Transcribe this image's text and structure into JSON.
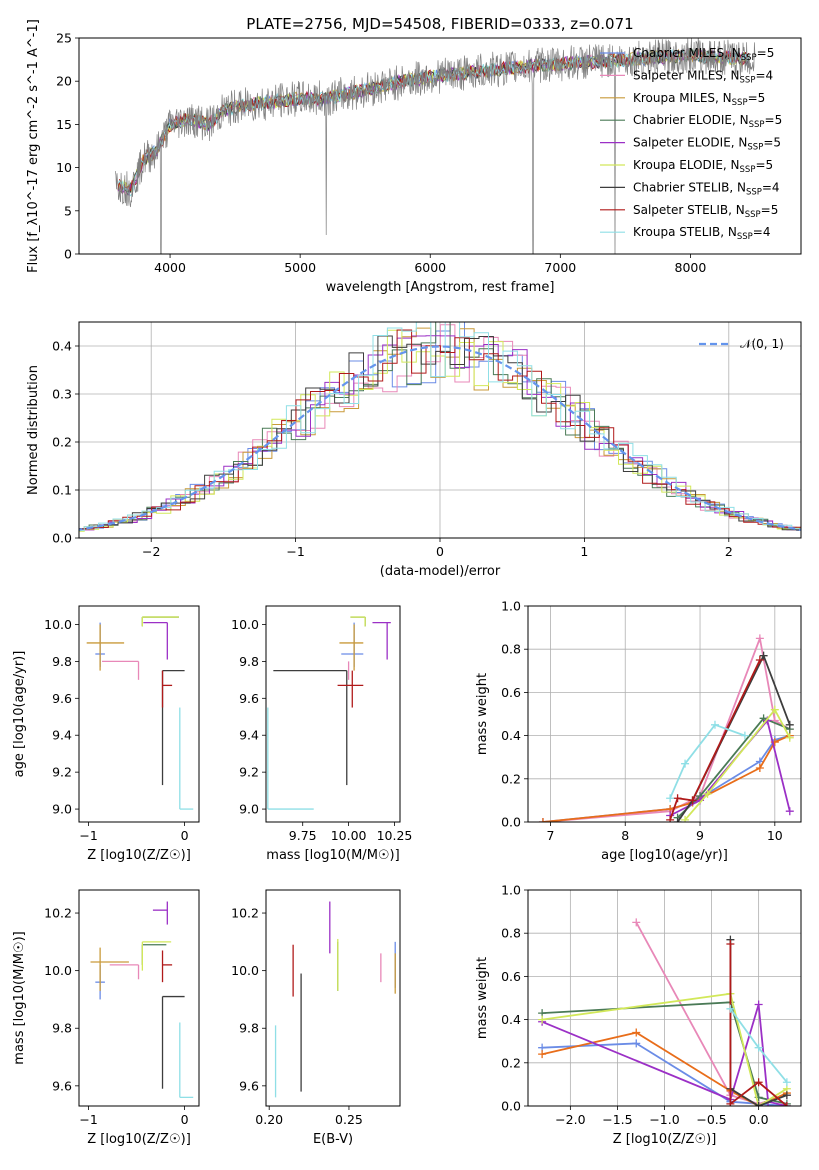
{
  "chart_data": [
    {
      "type": "line",
      "title": "PLATE=2756, MJD=54508, FIBERID=0333, z=0.071",
      "xlabel": "wavelength [Angstrom, rest frame]",
      "ylabel": "Flux [f_λ10^-17 erg cm^-2 s^-1 A^-1]",
      "xlim": [
        3300,
        8850
      ],
      "ylim": [
        0,
        25
      ],
      "xticks": [
        "4000",
        "5000",
        "6000",
        "7000",
        "8000"
      ],
      "yticks": [
        "0",
        "5",
        "10",
        "15",
        "20",
        "25"
      ],
      "grid": false,
      "legend_position": "right",
      "series": [
        {
          "name": "Chabrier MILES, N_SSP=5",
          "color": "#6b8ce6"
        },
        {
          "name": "Salpeter MILES, N_SSP=4",
          "color": "#e888b8"
        },
        {
          "name": "Kroupa MILES, N_SSP=5",
          "color": "#c99a3a"
        },
        {
          "name": "Chabrier ELODIE, N_SSP=5",
          "color": "#4a7a56"
        },
        {
          "name": "Salpeter ELODIE, N_SSP=5",
          "color": "#9b30c6"
        },
        {
          "name": "Kroupa ELODIE, N_SSP=5",
          "color": "#d2e85a"
        },
        {
          "name": "Chabrier STELIB, N_SSP=4",
          "color": "#3d3d3d"
        },
        {
          "name": "Salpeter STELIB, N_SSP=5",
          "color": "#b01a1a"
        },
        {
          "name": "Kroupa STELIB, N_SSP=4",
          "color": "#8fdfe6"
        }
      ],
      "data_color": "#808080",
      "continuum": {
        "x": [
          3600,
          3700,
          3800,
          3900,
          4000,
          4100,
          4200,
          4300,
          4400,
          4500,
          4700,
          5000,
          5200,
          5500,
          5800,
          6000,
          6300,
          6600,
          7000,
          7500,
          8000,
          8500
        ],
        "y": [
          8.0,
          7.5,
          11.0,
          12.0,
          15.0,
          15.5,
          15.5,
          15.0,
          16.5,
          17.0,
          17.5,
          18.0,
          18.0,
          19.0,
          20.0,
          20.5,
          21.0,
          21.5,
          22.0,
          22.5,
          23.0,
          22.5
        ]
      }
    },
    {
      "type": "histogram",
      "xlabel": "(data-model)/error",
      "ylabel": "Normed distribution",
      "xlim": [
        -2.5,
        2.5
      ],
      "ylim": [
        0,
        0.45
      ],
      "xticks": [
        "−2",
        "−1",
        "0",
        "1",
        "2"
      ],
      "yticks": [
        "0.0",
        "0.1",
        "0.2",
        "0.3",
        "0.4"
      ],
      "grid": true,
      "legend_position": "top-right",
      "reference_curve": {
        "name": "𝒩(0, 1)",
        "color": "#6495ed"
      }
    },
    {
      "type": "scatter",
      "xlabel": "Z [log10(Z/Z☉)]",
      "ylabel": "age [log10(age/yr)]",
      "xlim": [
        -1.1,
        0.15
      ],
      "ylim": [
        8.93,
        10.1
      ],
      "xticks": [
        "−1",
        "0"
      ],
      "yticks": [
        "9.0",
        "9.2",
        "9.4",
        "9.6",
        "9.8",
        "10.0"
      ],
      "points": [
        {
          "series": 0,
          "x": -0.88,
          "xerr": [
            0.05,
            0.05
          ],
          "y": 9.84,
          "yerr": [
            0.07,
            0.17
          ]
        },
        {
          "series": 1,
          "x": -0.48,
          "xerr": [
            0.38,
            0.0
          ],
          "y": 9.8,
          "yerr": [
            0.1,
            0.0
          ]
        },
        {
          "series": 2,
          "x": -0.88,
          "xerr": [
            0.14,
            0.25
          ],
          "y": 9.9,
          "yerr": [
            0.15,
            0.1
          ]
        },
        {
          "series": 3,
          "x": -0.44,
          "xerr": [
            0.0,
            0.38
          ],
          "y": 10.04,
          "yerr": [
            0.05,
            0.0
          ]
        },
        {
          "series": 4,
          "x": -0.18,
          "xerr": [
            0.25,
            0.0
          ],
          "y": 10.01,
          "yerr": [
            0.2,
            0.0
          ]
        },
        {
          "series": 5,
          "x": -0.44,
          "xerr": [
            0.0,
            0.38
          ],
          "y": 10.04,
          "yerr": [
            0.05,
            0.0
          ]
        },
        {
          "series": 6,
          "x": -0.23,
          "xerr": [
            0.0,
            0.23
          ],
          "y": 9.75,
          "yerr": [
            0.62,
            0.0
          ]
        },
        {
          "series": 7,
          "x": -0.23,
          "xerr": [
            0.0,
            0.1
          ],
          "y": 9.67,
          "yerr": [
            0.12,
            0.08
          ]
        },
        {
          "series": 8,
          "x": -0.05,
          "xerr": [
            0.0,
            0.14
          ],
          "y": 9.0,
          "yerr": [
            0.0,
            0.55
          ]
        }
      ]
    },
    {
      "type": "scatter",
      "xlabel": "mass [log10(M/M☉)]",
      "xlim": [
        9.55,
        10.28
      ],
      "ylim": [
        8.93,
        10.1
      ],
      "xticks": [
        "9.75",
        "10.00",
        "10.25"
      ],
      "yticks": [
        "9.0",
        "9.2",
        "9.4",
        "9.6",
        "9.8",
        "10.0"
      ],
      "points": [
        {
          "series": 0,
          "x": 10.03,
          "xerr": [
            0.07,
            0.05
          ],
          "y": 9.84,
          "yerr": [
            0.07,
            0.17
          ]
        },
        {
          "series": 1,
          "x": 10.0,
          "xerr": [
            0.0,
            0.0
          ],
          "y": 9.8,
          "yerr": [
            0.1,
            0.0
          ]
        },
        {
          "series": 2,
          "x": 10.03,
          "xerr": [
            0.08,
            0.05
          ],
          "y": 9.9,
          "yerr": [
            0.15,
            0.1
          ]
        },
        {
          "series": 3,
          "x": 10.09,
          "xerr": [
            0.08,
            0.0
          ],
          "y": 10.04,
          "yerr": [
            0.05,
            0.0
          ]
        },
        {
          "series": 4,
          "x": 10.21,
          "xerr": [
            0.08,
            0.02
          ],
          "y": 10.01,
          "yerr": [
            0.2,
            0.0
          ]
        },
        {
          "series": 5,
          "x": 10.09,
          "xerr": [
            0.08,
            0.0
          ],
          "y": 10.04,
          "yerr": [
            0.05,
            0.0
          ]
        },
        {
          "series": 6,
          "x": 9.99,
          "xerr": [
            0.4,
            0.0
          ],
          "y": 9.75,
          "yerr": [
            0.62,
            0.0
          ]
        },
        {
          "series": 7,
          "x": 10.02,
          "xerr": [
            0.08,
            0.06
          ],
          "y": 9.67,
          "yerr": [
            0.12,
            0.08
          ]
        },
        {
          "series": 8,
          "x": 9.56,
          "xerr": [
            0.0,
            0.25
          ],
          "y": 9.0,
          "yerr": [
            0.0,
            0.55
          ]
        }
      ]
    },
    {
      "type": "line",
      "xlabel": "age [log10(age/yr)]",
      "ylabel": "mass weight",
      "xlim": [
        6.7,
        10.35
      ],
      "ylim": [
        0,
        1
      ],
      "xticks": [
        "7",
        "8",
        "9",
        "10"
      ],
      "yticks": [
        "0.0",
        "0.2",
        "0.4",
        "0.6",
        "0.8",
        "1.0"
      ],
      "grid": true,
      "series": [
        {
          "color": "#6b8ce6",
          "x": [
            6.9,
            8.6,
            8.9,
            9.8,
            10.0,
            10.2
          ],
          "y": [
            0.0,
            0.06,
            0.09,
            0.28,
            0.38,
            0.4
          ]
        },
        {
          "color": "#e888b8",
          "x": [
            6.9,
            8.6,
            9.0,
            9.8,
            10.0,
            10.2
          ],
          "y": [
            0.0,
            0.05,
            0.12,
            0.85,
            0.47,
            0.43
          ]
        },
        {
          "color": "#e86d1a",
          "x": [
            6.9,
            8.6,
            8.9,
            9.8,
            10.0,
            10.2
          ],
          "y": [
            0.0,
            0.06,
            0.09,
            0.25,
            0.37,
            0.4
          ]
        },
        {
          "color": "#4a7a56",
          "x": [
            8.7,
            9.0,
            9.85,
            10.2
          ],
          "y": [
            0.02,
            0.12,
            0.48,
            0.43
          ]
        },
        {
          "color": "#9b30c6",
          "x": [
            8.6,
            9.0,
            9.9,
            10.2
          ],
          "y": [
            0.03,
            0.1,
            0.47,
            0.05
          ]
        },
        {
          "color": "#d2e85a",
          "x": [
            8.8,
            9.1,
            10.0,
            10.2
          ],
          "y": [
            0.01,
            0.13,
            0.52,
            0.39
          ]
        },
        {
          "color": "#3d3d3d",
          "x": [
            8.7,
            8.9,
            9.85,
            10.2
          ],
          "y": [
            0.0,
            0.1,
            0.77,
            0.45
          ]
        },
        {
          "color": "#b01a1a",
          "x": [
            8.6,
            8.7,
            8.9,
            9.8
          ],
          "y": [
            0.01,
            0.11,
            0.1,
            0.75
          ]
        },
        {
          "color": "#8fdfe6",
          "x": [
            8.6,
            8.8,
            9.2,
            9.6
          ],
          "y": [
            0.11,
            0.27,
            0.45,
            0.4
          ]
        }
      ]
    },
    {
      "type": "scatter",
      "xlabel": "Z [log10(Z/Z☉)]",
      "ylabel": "mass [log10(M/M☉)]",
      "xlim": [
        -1.1,
        0.15
      ],
      "ylim": [
        9.53,
        10.28
      ],
      "xticks": [
        "−1",
        "0"
      ],
      "yticks": [
        "9.6",
        "9.8",
        "10.0",
        "10.2"
      ],
      "points": [
        {
          "series": 0,
          "x": -0.88,
          "xerr": [
            0.05,
            0.05
          ],
          "y": 9.96,
          "yerr": [
            0.06,
            0.06
          ]
        },
        {
          "series": 1,
          "x": -0.48,
          "xerr": [
            0.3,
            0.0
          ],
          "y": 10.02,
          "yerr": [
            0.05,
            0.0
          ]
        },
        {
          "series": 2,
          "x": -0.88,
          "xerr": [
            0.1,
            0.3
          ],
          "y": 10.03,
          "yerr": [
            0.1,
            0.05
          ]
        },
        {
          "series": 3,
          "x": -0.44,
          "xerr": [
            0.0,
            0.25
          ],
          "y": 10.09,
          "yerr": [
            0.07,
            0.0
          ]
        },
        {
          "series": 4,
          "x": -0.18,
          "xerr": [
            0.15,
            0.0
          ],
          "y": 10.21,
          "yerr": [
            0.05,
            0.03
          ]
        },
        {
          "series": 5,
          "x": -0.44,
          "xerr": [
            0.0,
            0.3
          ],
          "y": 10.1,
          "yerr": [
            0.1,
            0.0
          ]
        },
        {
          "series": 6,
          "x": -0.23,
          "xerr": [
            0.0,
            0.23
          ],
          "y": 9.91,
          "yerr": [
            0.32,
            0.0
          ]
        },
        {
          "series": 7,
          "x": -0.23,
          "xerr": [
            0.0,
            0.1
          ],
          "y": 10.02,
          "yerr": [
            0.06,
            0.05
          ]
        },
        {
          "series": 8,
          "x": -0.05,
          "xerr": [
            0.0,
            0.14
          ],
          "y": 9.56,
          "yerr": [
            0.0,
            0.26
          ]
        }
      ]
    },
    {
      "type": "scatter",
      "xlabel": "E(B-V)",
      "xlim": [
        0.198,
        0.282
      ],
      "ylim": [
        9.53,
        10.28
      ],
      "xticks": [
        "0.20",
        "0.25"
      ],
      "yticks": [
        "9.6",
        "9.8",
        "10.0",
        "10.2"
      ],
      "points": [
        {
          "series": 0,
          "x": 0.279,
          "y": 10.01,
          "yerr": [
            0.07,
            0.09
          ]
        },
        {
          "series": 1,
          "x": 0.27,
          "y": 10.0,
          "yerr": [
            0.04,
            0.06
          ]
        },
        {
          "series": 2,
          "x": 0.279,
          "y": 10.0,
          "yerr": [
            0.08,
            0.06
          ]
        },
        {
          "series": 3,
          "x": 0.243,
          "y": 10.05,
          "yerr": [
            0.12,
            0.05
          ]
        },
        {
          "series": 4,
          "x": 0.238,
          "y": 10.15,
          "yerr": [
            0.09,
            0.09
          ]
        },
        {
          "series": 5,
          "x": 0.243,
          "y": 10.01,
          "yerr": [
            0.08,
            0.1
          ]
        },
        {
          "series": 6,
          "x": 0.22,
          "y": 9.77,
          "yerr": [
            0.19,
            0.22
          ]
        },
        {
          "series": 7,
          "x": 0.215,
          "y": 9.99,
          "yerr": [
            0.08,
            0.1
          ]
        },
        {
          "series": 8,
          "x": 0.204,
          "y": 9.69,
          "yerr": [
            0.13,
            0.12
          ]
        }
      ]
    },
    {
      "type": "line",
      "xlabel": "Z [log10(Z/Z☉)]",
      "ylabel": "mass weight",
      "xlim": [
        -2.45,
        0.45
      ],
      "ylim": [
        0,
        1
      ],
      "xticks": [
        "−2.0",
        "−1.5",
        "−1.0",
        "−0.5",
        "0.0"
      ],
      "yticks": [
        "0.0",
        "0.2",
        "0.4",
        "0.6",
        "0.8",
        "1.0"
      ],
      "grid": true,
      "series": [
        {
          "color": "#6b8ce6",
          "x": [
            -2.3,
            -1.3,
            -0.3,
            0.0,
            0.3
          ],
          "y": [
            0.27,
            0.29,
            0.02,
            0.01,
            0.0
          ]
        },
        {
          "color": "#e888b8",
          "x": [
            -1.3,
            -0.3,
            0.0,
            0.3
          ],
          "y": [
            0.85,
            0.05,
            0.01,
            0.05
          ]
        },
        {
          "color": "#e86d1a",
          "x": [
            -2.3,
            -1.3,
            -0.3,
            0.0,
            0.3
          ],
          "y": [
            0.24,
            0.34,
            0.07,
            0.0,
            0.06
          ]
        },
        {
          "color": "#4a7a56",
          "x": [
            -2.3,
            -0.3,
            0.0,
            0.3
          ],
          "y": [
            0.43,
            0.48,
            0.04,
            0.01
          ]
        },
        {
          "color": "#9b30c6",
          "x": [
            -2.3,
            -0.3,
            0.0,
            0.1,
            0.3
          ],
          "y": [
            0.39,
            0.03,
            0.47,
            0.02,
            0.0
          ]
        },
        {
          "color": "#d2e85a",
          "x": [
            -2.3,
            -0.3,
            0.0,
            0.3
          ],
          "y": [
            0.4,
            0.52,
            0.0,
            0.08
          ]
        },
        {
          "color": "#3d3d3d",
          "x": [
            -0.3,
            -0.3,
            0.0,
            0.3
          ],
          "y": [
            0.77,
            0.08,
            0.0,
            0.05
          ]
        },
        {
          "color": "#b01a1a",
          "x": [
            -0.3,
            -0.3,
            0.0,
            0.3
          ],
          "y": [
            0.75,
            0.01,
            0.11,
            0.0
          ]
        },
        {
          "color": "#8fdfe6",
          "x": [
            -0.3,
            0.0,
            0.3
          ],
          "y": [
            0.45,
            0.27,
            0.11
          ]
        }
      ]
    }
  ]
}
